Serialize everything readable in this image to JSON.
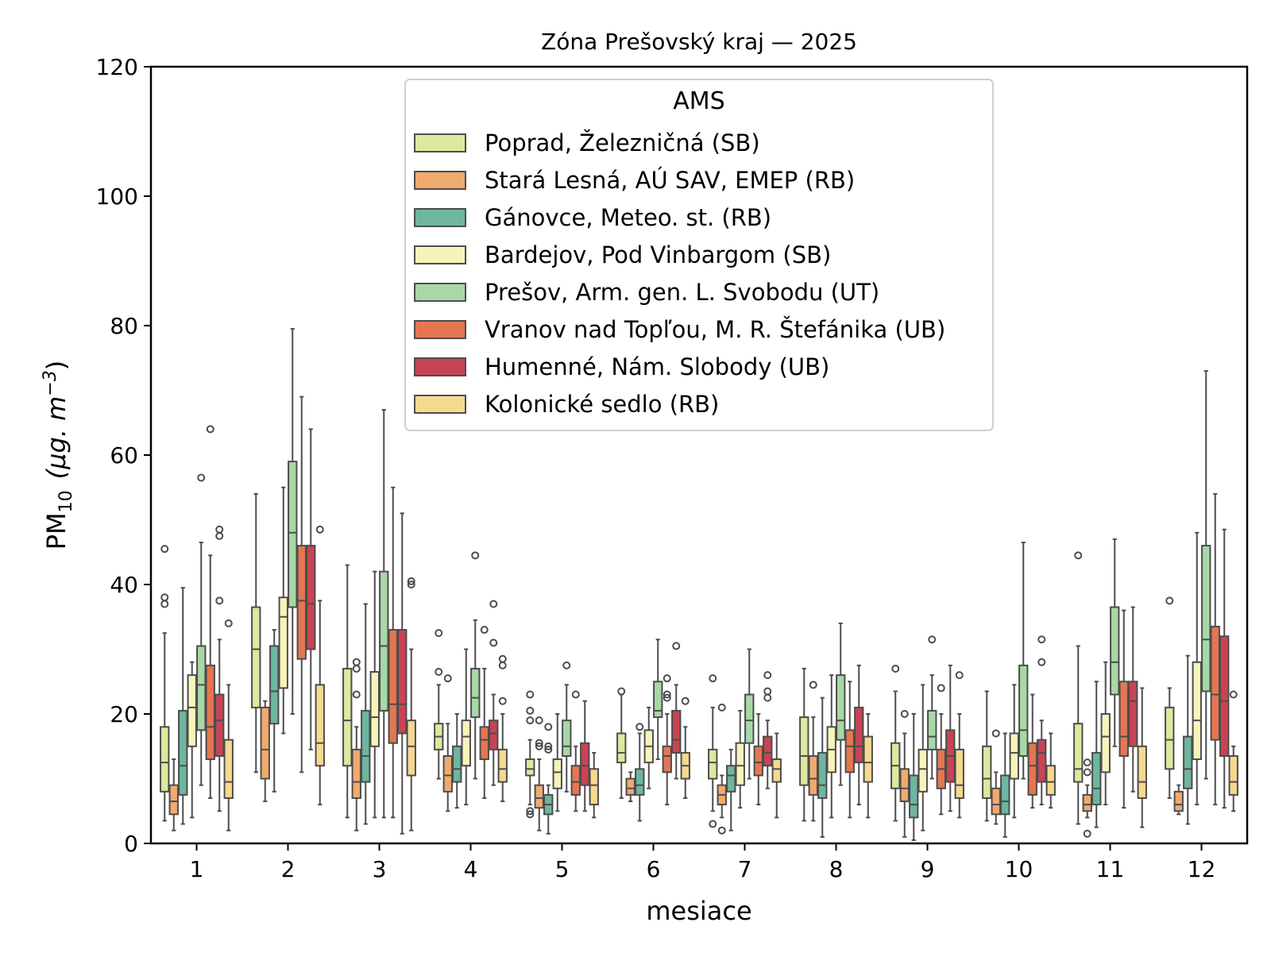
{
  "chart_data": {
    "type": "boxplot",
    "title": "Zóna Prešovský kraj —  2025",
    "xlabel": "mesiace",
    "ylabel_base": "PM",
    "ylabel_sub": "10",
    "ylabel_units": "(μg. m",
    "ylabel_exp": "−3",
    "ylim": [
      0,
      120
    ],
    "yticks": [
      0,
      20,
      40,
      60,
      80,
      100,
      120
    ],
    "categories": [
      "1",
      "2",
      "3",
      "4",
      "5",
      "6",
      "7",
      "8",
      "9",
      "10",
      "11",
      "12"
    ],
    "legend_title": "AMS",
    "legend_position": "top-center",
    "series": [
      {
        "name": "Poprad, Železničná (SB)",
        "color": "#dce99e",
        "boxes": [
          {
            "min": 3.5,
            "q1": 8,
            "median": 12.5,
            "q3": 18,
            "max": 32.5,
            "outliers": [
              37,
              38,
              45.5
            ]
          },
          {
            "min": 11,
            "q1": 21,
            "median": 30,
            "q3": 36.5,
            "max": 54,
            "outliers": []
          },
          {
            "min": 4,
            "q1": 12,
            "median": 19,
            "q3": 27,
            "max": 43,
            "outliers": []
          },
          {
            "min": 10,
            "q1": 14.5,
            "median": 16.5,
            "q3": 18.5,
            "max": 24.5,
            "outliers": [
              26.5,
              32.5
            ]
          },
          {
            "min": 6,
            "q1": 10.5,
            "median": 11.5,
            "q3": 13,
            "max": 16,
            "outliers": [
              4.5,
              5,
              19,
              20.5,
              23
            ]
          },
          {
            "min": 7,
            "q1": 12.5,
            "median": 14,
            "q3": 17,
            "max": 23,
            "outliers": [
              23.5
            ]
          },
          {
            "min": 5,
            "q1": 10,
            "median": 12.5,
            "q3": 14.5,
            "max": 21,
            "outliers": [
              3,
              25.5
            ]
          },
          {
            "min": 3.5,
            "q1": 9,
            "median": 13.5,
            "q3": 19.5,
            "max": 27,
            "outliers": []
          },
          {
            "min": 3.5,
            "q1": 8.5,
            "median": 12,
            "q3": 15.5,
            "max": 23.5,
            "outliers": [
              27
            ]
          },
          {
            "min": 3.5,
            "q1": 7,
            "median": 10,
            "q3": 15,
            "max": 23.5,
            "outliers": []
          },
          {
            "min": 3,
            "q1": 9.5,
            "median": 11.5,
            "q3": 18.5,
            "max": 30.5,
            "outliers": [
              44.5
            ]
          },
          {
            "min": 7,
            "q1": 11.5,
            "median": 16,
            "q3": 21,
            "max": 24,
            "outliers": [
              37.5
            ]
          }
        ]
      },
      {
        "name": "Stará Lesná, AÚ SAV, EMEP (RB)",
        "color": "#f0aa6e",
        "boxes": [
          {
            "min": 2,
            "q1": 4.5,
            "median": 6.5,
            "q3": 9,
            "max": 13,
            "outliers": []
          },
          {
            "min": 6.5,
            "q1": 10,
            "median": 14.5,
            "q3": 21,
            "max": 22,
            "outliers": []
          },
          {
            "min": 2,
            "q1": 7,
            "median": 9.5,
            "q3": 14.5,
            "max": 18,
            "outliers": [
              23,
              27,
              28
            ]
          },
          {
            "min": 5,
            "q1": 8,
            "median": 10.5,
            "q3": 13.5,
            "max": 18.5,
            "outliers": [
              25.5
            ]
          },
          {
            "min": 2,
            "q1": 5.5,
            "median": 7,
            "q3": 9,
            "max": 13,
            "outliers": [
              15,
              15.5,
              19
            ]
          },
          {
            "min": 6.5,
            "q1": 7.5,
            "median": 8.5,
            "q3": 10,
            "max": 11,
            "outliers": []
          },
          {
            "min": 4,
            "q1": 6,
            "median": 7.5,
            "q3": 9,
            "max": 10.5,
            "outliers": [
              2,
              21
            ]
          },
          {
            "min": 3.5,
            "q1": 7.5,
            "median": 10,
            "q3": 13.5,
            "max": 19.5,
            "outliers": [
              24.5
            ]
          },
          {
            "min": 1,
            "q1": 6.5,
            "median": 8.5,
            "q3": 11.5,
            "max": 17,
            "outliers": [
              20
            ]
          },
          {
            "min": 3,
            "q1": 4.5,
            "median": 6,
            "q3": 8.5,
            "max": 11,
            "outliers": [
              17
            ]
          },
          {
            "min": 4,
            "q1": 5,
            "median": 6,
            "q3": 7.5,
            "max": 9,
            "outliers": [
              1.5,
              11,
              12.5
            ]
          },
          {
            "min": 4.5,
            "q1": 5,
            "median": 6,
            "q3": 8,
            "max": 9,
            "outliers": []
          }
        ]
      },
      {
        "name": "Gánovce, Meteo. st. (RB)",
        "color": "#6db6a0",
        "boxes": [
          {
            "min": 3,
            "q1": 7.5,
            "median": 12,
            "q3": 20.5,
            "max": 39.5,
            "outliers": []
          },
          {
            "min": 8,
            "q1": 18.5,
            "median": 23.5,
            "q3": 30.5,
            "max": 33,
            "outliers": []
          },
          {
            "min": 3,
            "q1": 9.5,
            "median": 13.5,
            "q3": 20.5,
            "max": 37,
            "outliers": []
          },
          {
            "min": 5.5,
            "q1": 9.5,
            "median": 11.5,
            "q3": 15,
            "max": 20,
            "outliers": []
          },
          {
            "min": 1.5,
            "q1": 4.5,
            "median": 6,
            "q3": 7.5,
            "max": 9,
            "outliers": [
              14.5,
              15,
              18
            ]
          },
          {
            "min": 3.5,
            "q1": 7.5,
            "median": 9,
            "q3": 11.5,
            "max": 17,
            "outliers": [
              18
            ]
          },
          {
            "min": 2,
            "q1": 8,
            "median": 10.5,
            "q3": 12,
            "max": 14.5,
            "outliers": []
          },
          {
            "min": 1,
            "q1": 7,
            "median": 9,
            "q3": 14,
            "max": 22.5,
            "outliers": []
          },
          {
            "min": 0.5,
            "q1": 4,
            "median": 6,
            "q3": 10.5,
            "max": 20,
            "outliers": []
          },
          {
            "min": 1,
            "q1": 4.5,
            "median": 6.5,
            "q3": 10.5,
            "max": 17,
            "outliers": []
          },
          {
            "min": 2.5,
            "q1": 6,
            "median": 8.5,
            "q3": 14,
            "max": 25,
            "outliers": []
          },
          {
            "min": 3,
            "q1": 8.5,
            "median": 11.5,
            "q3": 16.5,
            "max": 29,
            "outliers": []
          }
        ]
      },
      {
        "name": "Bardejov, Pod Vinbargom (SB)",
        "color": "#f7f4bb",
        "boxes": [
          {
            "min": 4,
            "q1": 15,
            "median": 21,
            "q3": 26,
            "max": 28,
            "outliers": []
          },
          {
            "min": 17,
            "q1": 24,
            "median": 35,
            "q3": 38,
            "max": 55,
            "outliers": []
          },
          {
            "min": 4,
            "q1": 15,
            "median": 19.5,
            "q3": 26.5,
            "max": 42,
            "outliers": []
          },
          {
            "min": 6,
            "q1": 12,
            "median": 16.5,
            "q3": 19,
            "max": 30,
            "outliers": []
          },
          {
            "min": 5,
            "q1": 8.5,
            "median": 11,
            "q3": 13,
            "max": 20,
            "outliers": []
          },
          {
            "min": 8.5,
            "q1": 12.5,
            "median": 15,
            "q3": 17.5,
            "max": 21,
            "outliers": []
          },
          {
            "min": 5.5,
            "q1": 9,
            "median": 12,
            "q3": 15.5,
            "max": 20.5,
            "outliers": []
          },
          {
            "min": 4,
            "q1": 11,
            "median": 14.5,
            "q3": 18,
            "max": 26,
            "outliers": []
          },
          {
            "min": 2,
            "q1": 8,
            "median": 11.5,
            "q3": 14.5,
            "max": 24.5,
            "outliers": []
          },
          {
            "min": 4,
            "q1": 10,
            "median": 14,
            "q3": 17,
            "max": 24.5,
            "outliers": []
          },
          {
            "min": 6,
            "q1": 11,
            "median": 16.5,
            "q3": 20,
            "max": 28,
            "outliers": []
          },
          {
            "min": 6,
            "q1": 13,
            "median": 19,
            "q3": 28,
            "max": 48,
            "outliers": []
          }
        ]
      },
      {
        "name": "Prešov, Arm. gen. L. Svobodu (UT)",
        "color": "#a8d8a6",
        "boxes": [
          {
            "min": 9,
            "q1": 17.5,
            "median": 24.5,
            "q3": 30.5,
            "max": 46.5,
            "outliers": [
              56.5
            ]
          },
          {
            "min": 20,
            "q1": 36.5,
            "median": 48,
            "q3": 59,
            "max": 79.5,
            "outliers": []
          },
          {
            "min": 4,
            "q1": 20.5,
            "median": 30.5,
            "q3": 42,
            "max": 67,
            "outliers": []
          },
          {
            "min": 10,
            "q1": 19.5,
            "median": 22.5,
            "q3": 27,
            "max": 34.5,
            "outliers": [
              44.5
            ]
          },
          {
            "min": 8,
            "q1": 13.5,
            "median": 15,
            "q3": 19,
            "max": 24.5,
            "outliers": [
              27.5
            ]
          },
          {
            "min": 13,
            "q1": 19.5,
            "median": 20.5,
            "q3": 25,
            "max": 31.5,
            "outliers": []
          },
          {
            "min": 10,
            "q1": 15.5,
            "median": 19,
            "q3": 23,
            "max": 30,
            "outliers": []
          },
          {
            "min": 9,
            "q1": 16,
            "median": 19,
            "q3": 26,
            "max": 34,
            "outliers": []
          },
          {
            "min": 10,
            "q1": 14.5,
            "median": 16.5,
            "q3": 20.5,
            "max": 26,
            "outliers": [
              31.5
            ]
          },
          {
            "min": 10,
            "q1": 13.5,
            "median": 17.5,
            "q3": 27.5,
            "max": 46.5,
            "outliers": []
          },
          {
            "min": 15,
            "q1": 23,
            "median": 28,
            "q3": 36.5,
            "max": 47,
            "outliers": []
          },
          {
            "min": 10,
            "q1": 23.5,
            "median": 31.5,
            "q3": 46,
            "max": 73,
            "outliers": []
          }
        ]
      },
      {
        "name": "Vranov nad Topľou, M. R. Štefánika (UB)",
        "color": "#e57652",
        "boxes": [
          {
            "min": 7,
            "q1": 13,
            "median": 18,
            "q3": 27.5,
            "max": 44.5,
            "outliers": [
              64
            ]
          },
          {
            "min": 11,
            "q1": 28.5,
            "median": 37.5,
            "q3": 46,
            "max": 69,
            "outliers": []
          },
          {
            "min": 4,
            "q1": 15.5,
            "median": 21.5,
            "q3": 33,
            "max": 55,
            "outliers": []
          },
          {
            "min": 7,
            "q1": 13,
            "median": 16,
            "q3": 18,
            "max": 27,
            "outliers": [
              33
            ]
          },
          {
            "min": 5,
            "q1": 7.5,
            "median": 9.5,
            "q3": 12,
            "max": 15,
            "outliers": [
              23
            ]
          },
          {
            "min": 6,
            "q1": 11,
            "median": 13.5,
            "q3": 15,
            "max": 20,
            "outliers": [
              22.5,
              23,
              25.5
            ]
          },
          {
            "min": 6,
            "q1": 10.5,
            "median": 12.5,
            "q3": 15,
            "max": 20,
            "outliers": []
          },
          {
            "min": 4,
            "q1": 11,
            "median": 15,
            "q3": 17.5,
            "max": 25,
            "outliers": []
          },
          {
            "min": 4.5,
            "q1": 8.5,
            "median": 11.5,
            "q3": 14.5,
            "max": 20,
            "outliers": [
              24
            ]
          },
          {
            "min": 5.5,
            "q1": 7.5,
            "median": 12,
            "q3": 15.5,
            "max": 23,
            "outliers": []
          },
          {
            "min": 5.5,
            "q1": 13.5,
            "median": 16.5,
            "q3": 25,
            "max": 36,
            "outliers": []
          },
          {
            "min": 6,
            "q1": 16,
            "median": 23,
            "q3": 33.5,
            "max": 54,
            "outliers": []
          }
        ]
      },
      {
        "name": "Humenné, Nám. Slobody (UB)",
        "color": "#c84454",
        "boxes": [
          {
            "min": 5,
            "q1": 13.5,
            "median": 19,
            "q3": 23,
            "max": 31.5,
            "outliers": [
              37.5,
              47.5,
              48.5
            ]
          },
          {
            "min": 14.5,
            "q1": 30,
            "median": 37,
            "q3": 46,
            "max": 64,
            "outliers": []
          },
          {
            "min": 1.5,
            "q1": 17,
            "median": 21.5,
            "q3": 33,
            "max": 51,
            "outliers": []
          },
          {
            "min": 9,
            "q1": 14.5,
            "median": 17,
            "q3": 19,
            "max": 23,
            "outliers": [
              31,
              37
            ]
          },
          {
            "min": 5,
            "q1": 9,
            "median": 12,
            "q3": 15.5,
            "max": 22,
            "outliers": []
          },
          {
            "min": 10,
            "q1": 14,
            "median": 16,
            "q3": 20.5,
            "max": 24.5,
            "outliers": [
              30.5
            ]
          },
          {
            "min": 8.5,
            "q1": 12,
            "median": 14,
            "q3": 16.5,
            "max": 19,
            "outliers": [
              22.5,
              23.5,
              26
            ]
          },
          {
            "min": 6,
            "q1": 12.5,
            "median": 15,
            "q3": 21,
            "max": 27.5,
            "outliers": []
          },
          {
            "min": 5,
            "q1": 9.5,
            "median": 13.5,
            "q3": 17.5,
            "max": 27.5,
            "outliers": []
          },
          {
            "min": 6,
            "q1": 9.5,
            "median": 14,
            "q3": 16,
            "max": 19,
            "outliers": [
              28,
              31.5
            ]
          },
          {
            "min": 8,
            "q1": 15,
            "median": 22,
            "q3": 25,
            "max": 36.5,
            "outliers": []
          },
          {
            "min": 5.5,
            "q1": 13.5,
            "median": 22,
            "q3": 32,
            "max": 48.5,
            "outliers": []
          }
        ]
      },
      {
        "name": "Kolonické sedlo (RB)",
        "color": "#f5d98f",
        "boxes": [
          {
            "min": 2,
            "q1": 7,
            "median": 9.5,
            "q3": 16,
            "max": 24.5,
            "outliers": [
              34
            ]
          },
          {
            "min": 6,
            "q1": 12,
            "median": 15.5,
            "q3": 24.5,
            "max": 37.5,
            "outliers": [
              48.5
            ]
          },
          {
            "min": 2,
            "q1": 10.5,
            "median": 15,
            "q3": 19,
            "max": 30,
            "outliers": [
              40,
              40.5
            ]
          },
          {
            "min": 6.5,
            "q1": 9.5,
            "median": 11.5,
            "q3": 14.5,
            "max": 20,
            "outliers": [
              22,
              27.5,
              28.5
            ]
          },
          {
            "min": 4,
            "q1": 6,
            "median": 9,
            "q3": 11.5,
            "max": 14,
            "outliers": []
          },
          {
            "min": 7,
            "q1": 10,
            "median": 12,
            "q3": 14,
            "max": 18,
            "outliers": [
              22
            ]
          },
          {
            "min": 4,
            "q1": 9.5,
            "median": 11.5,
            "q3": 13,
            "max": 17,
            "outliers": []
          },
          {
            "min": 4,
            "q1": 9.5,
            "median": 12.5,
            "q3": 16.5,
            "max": 20,
            "outliers": []
          },
          {
            "min": 4,
            "q1": 7,
            "median": 9,
            "q3": 14.5,
            "max": 20,
            "outliers": [
              26
            ]
          },
          {
            "min": 5.5,
            "q1": 7.5,
            "median": 9.5,
            "q3": 12,
            "max": 17,
            "outliers": []
          },
          {
            "min": 2.5,
            "q1": 7,
            "median": 9.5,
            "q3": 15,
            "max": 24,
            "outliers": []
          },
          {
            "min": 5,
            "q1": 7.5,
            "median": 9.5,
            "q3": 13.5,
            "max": 15,
            "outliers": [
              23
            ]
          }
        ]
      }
    ]
  }
}
